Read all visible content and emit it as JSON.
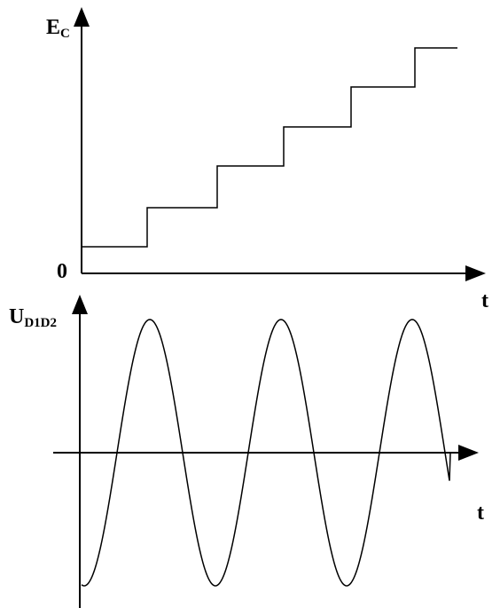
{
  "top_plot": {
    "y_label": "E",
    "y_label_sub": "C",
    "origin": "0",
    "x_label": "t"
  },
  "bottom_plot": {
    "y_label": "U",
    "y_label_sub": "D1D2",
    "x_label": "t"
  }
}
